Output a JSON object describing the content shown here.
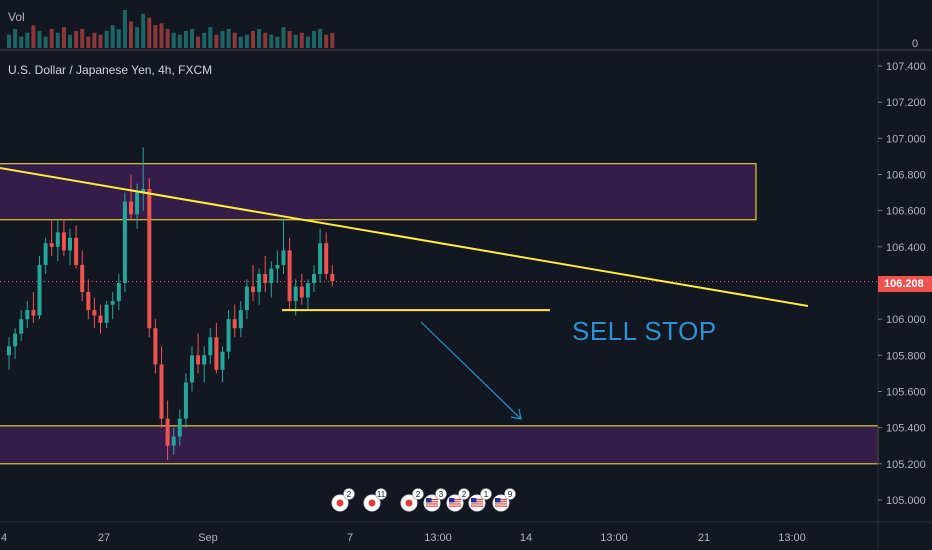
{
  "header": {
    "volume_label": "Vol",
    "volume_zero": "0",
    "symbol": "U.S. Dollar / Japanese Yen, 4h, FXCM"
  },
  "annotation": {
    "text": "SELL STOP",
    "color": "#2a93d5"
  },
  "current_price": {
    "label": "106.208",
    "value": 106.208,
    "color": "#ef5350"
  },
  "colors": {
    "background": "#131722",
    "up": "#26a69a",
    "down": "#ef5350",
    "trendline": "#ffeb3b",
    "zone_fill": "#3b1f52",
    "zone_border": "#ffeb3b",
    "arrow": "#2a93d5"
  },
  "event_markers": [
    {
      "icon": "flag-jp-icon",
      "count": "2"
    },
    {
      "icon": "flag-jp-icon",
      "count": "11"
    },
    {
      "icon": "flag-jp-icon",
      "count": "2"
    },
    {
      "icon": "flag-us-icon",
      "count": "3"
    },
    {
      "icon": "flag-us-icon",
      "count": "2"
    },
    {
      "icon": "flag-us-icon",
      "count": "1"
    },
    {
      "icon": "flag-us-icon",
      "count": "9"
    }
  ],
  "chart_data": {
    "type": "candlestick",
    "title": "U.S. Dollar / Japanese Yen, 4h, FXCM",
    "ylim": [
      104.95,
      107.45
    ],
    "y_ticks": [
      "107.400",
      "107.200",
      "107.000",
      "106.800",
      "106.600",
      "106.400",
      "106.200",
      "106.000",
      "105.800",
      "105.600",
      "105.400",
      "105.200",
      "105.000"
    ],
    "x_ticks": [
      "4",
      "27",
      "Sep",
      "7",
      "13:00",
      "14",
      "13:00",
      "21",
      "13:00"
    ],
    "grid": false,
    "candles": [
      [
        105.8,
        105.9,
        105.72,
        105.85
      ],
      [
        105.85,
        105.95,
        105.78,
        105.92
      ],
      [
        105.92,
        106.05,
        105.88,
        106.0
      ],
      [
        106.0,
        106.1,
        105.95,
        106.05
      ],
      [
        106.05,
        106.15,
        105.98,
        106.02
      ],
      [
        106.02,
        106.35,
        106.0,
        106.3
      ],
      [
        106.3,
        106.45,
        106.25,
        106.42
      ],
      [
        106.42,
        106.55,
        106.35,
        106.4
      ],
      [
        106.4,
        106.55,
        106.32,
        106.48
      ],
      [
        106.48,
        106.55,
        106.35,
        106.38
      ],
      [
        106.38,
        106.5,
        106.3,
        106.45
      ],
      [
        106.45,
        106.52,
        106.28,
        106.3
      ],
      [
        106.3,
        106.38,
        106.1,
        106.15
      ],
      [
        106.15,
        106.22,
        106.0,
        106.05
      ],
      [
        106.05,
        106.12,
        105.95,
        106.02
      ],
      [
        106.02,
        106.08,
        105.92,
        105.98
      ],
      [
        105.98,
        106.1,
        105.95,
        106.08
      ],
      [
        106.08,
        106.15,
        106.0,
        106.1
      ],
      [
        106.1,
        106.25,
        106.05,
        106.2
      ],
      [
        106.2,
        106.7,
        106.15,
        106.65
      ],
      [
        106.65,
        106.8,
        106.55,
        106.58
      ],
      [
        106.58,
        106.75,
        106.5,
        106.7
      ],
      [
        106.7,
        106.95,
        106.6,
        106.72
      ],
      [
        106.72,
        106.78,
        105.9,
        105.95
      ],
      [
        105.95,
        106.0,
        105.7,
        105.75
      ],
      [
        105.75,
        105.85,
        105.4,
        105.45
      ],
      [
        105.45,
        105.55,
        105.22,
        105.3
      ],
      [
        105.3,
        105.4,
        105.25,
        105.35
      ],
      [
        105.35,
        105.5,
        105.3,
        105.45
      ],
      [
        105.45,
        105.7,
        105.4,
        105.65
      ],
      [
        105.65,
        105.85,
        105.6,
        105.8
      ],
      [
        105.8,
        105.92,
        105.7,
        105.75
      ],
      [
        105.75,
        105.85,
        105.65,
        105.8
      ],
      [
        105.8,
        105.95,
        105.75,
        105.9
      ],
      [
        105.9,
        105.98,
        105.7,
        105.72
      ],
      [
        105.72,
        105.85,
        105.65,
        105.82
      ],
      [
        105.82,
        106.05,
        105.78,
        106.0
      ],
      [
        106.0,
        106.08,
        105.9,
        105.95
      ],
      [
        105.95,
        106.1,
        105.9,
        106.05
      ],
      [
        106.05,
        106.22,
        106.0,
        106.18
      ],
      [
        106.18,
        106.3,
        106.1,
        106.15
      ],
      [
        106.15,
        106.28,
        106.08,
        106.25
      ],
      [
        106.25,
        106.35,
        106.15,
        106.2
      ],
      [
        106.2,
        106.32,
        106.12,
        106.28
      ],
      [
        106.28,
        106.38,
        106.2,
        106.3
      ],
      [
        106.3,
        106.55,
        106.25,
        106.38
      ],
      [
        106.38,
        106.45,
        106.05,
        106.1
      ],
      [
        106.1,
        106.22,
        106.02,
        106.18
      ],
      [
        106.18,
        106.25,
        106.08,
        106.12
      ],
      [
        106.12,
        106.22,
        106.05,
        106.2
      ],
      [
        106.2,
        106.3,
        106.15,
        106.25
      ],
      [
        106.25,
        106.5,
        106.2,
        106.42
      ],
      [
        106.42,
        106.48,
        106.22,
        106.25
      ],
      [
        106.25,
        106.3,
        106.18,
        106.21
      ]
    ],
    "volume": [
      0.35,
      0.5,
      0.3,
      0.4,
      0.6,
      0.45,
      0.3,
      0.5,
      0.4,
      0.55,
      0.35,
      0.45,
      0.5,
      0.3,
      0.4,
      0.35,
      0.45,
      0.6,
      0.5,
      1.0,
      0.7,
      0.55,
      0.9,
      0.8,
      0.6,
      0.65,
      0.5,
      0.4,
      0.35,
      0.45,
      0.5,
      0.3,
      0.4,
      0.55,
      0.35,
      0.45,
      0.5,
      0.4,
      0.3,
      0.35,
      0.45,
      0.5,
      0.4,
      0.35,
      0.3,
      0.55,
      0.45,
      0.35,
      0.4,
      0.3,
      0.45,
      0.5,
      0.35,
      0.4
    ],
    "trendline": [
      [
        106.82,
        0
      ],
      [
        106.08,
        1
      ]
    ],
    "zones": [
      {
        "top": 106.86,
        "bottom": 106.55
      },
      {
        "top": 105.41,
        "bottom": 105.2
      }
    ],
    "sell_stop_level": 106.05
  }
}
